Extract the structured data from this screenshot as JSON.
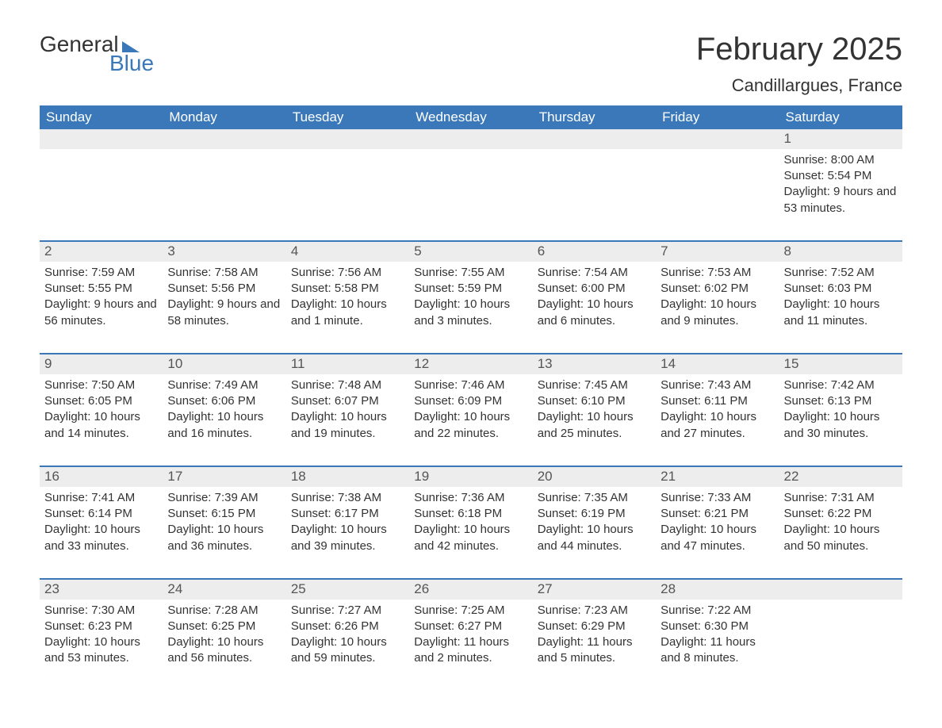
{
  "logo": {
    "word1": "General",
    "word2": "Blue"
  },
  "title": "February 2025",
  "location": "Candillargues, France",
  "colors": {
    "header_bg": "#3a78b9",
    "header_text": "#ffffff",
    "row_divider": "#3a78b9",
    "daynum_bg": "#ededed",
    "text": "#333333",
    "logo_accent": "#3a78b9"
  },
  "weekdays": [
    "Sunday",
    "Monday",
    "Tuesday",
    "Wednesday",
    "Thursday",
    "Friday",
    "Saturday"
  ],
  "weeks": [
    [
      null,
      null,
      null,
      null,
      null,
      null,
      {
        "n": "1",
        "sunrise": "Sunrise: 8:00 AM",
        "sunset": "Sunset: 5:54 PM",
        "daylight": "Daylight: 9 hours and 53 minutes."
      }
    ],
    [
      {
        "n": "2",
        "sunrise": "Sunrise: 7:59 AM",
        "sunset": "Sunset: 5:55 PM",
        "daylight": "Daylight: 9 hours and 56 minutes."
      },
      {
        "n": "3",
        "sunrise": "Sunrise: 7:58 AM",
        "sunset": "Sunset: 5:56 PM",
        "daylight": "Daylight: 9 hours and 58 minutes."
      },
      {
        "n": "4",
        "sunrise": "Sunrise: 7:56 AM",
        "sunset": "Sunset: 5:58 PM",
        "daylight": "Daylight: 10 hours and 1 minute."
      },
      {
        "n": "5",
        "sunrise": "Sunrise: 7:55 AM",
        "sunset": "Sunset: 5:59 PM",
        "daylight": "Daylight: 10 hours and 3 minutes."
      },
      {
        "n": "6",
        "sunrise": "Sunrise: 7:54 AM",
        "sunset": "Sunset: 6:00 PM",
        "daylight": "Daylight: 10 hours and 6 minutes."
      },
      {
        "n": "7",
        "sunrise": "Sunrise: 7:53 AM",
        "sunset": "Sunset: 6:02 PM",
        "daylight": "Daylight: 10 hours and 9 minutes."
      },
      {
        "n": "8",
        "sunrise": "Sunrise: 7:52 AM",
        "sunset": "Sunset: 6:03 PM",
        "daylight": "Daylight: 10 hours and 11 minutes."
      }
    ],
    [
      {
        "n": "9",
        "sunrise": "Sunrise: 7:50 AM",
        "sunset": "Sunset: 6:05 PM",
        "daylight": "Daylight: 10 hours and 14 minutes."
      },
      {
        "n": "10",
        "sunrise": "Sunrise: 7:49 AM",
        "sunset": "Sunset: 6:06 PM",
        "daylight": "Daylight: 10 hours and 16 minutes."
      },
      {
        "n": "11",
        "sunrise": "Sunrise: 7:48 AM",
        "sunset": "Sunset: 6:07 PM",
        "daylight": "Daylight: 10 hours and 19 minutes."
      },
      {
        "n": "12",
        "sunrise": "Sunrise: 7:46 AM",
        "sunset": "Sunset: 6:09 PM",
        "daylight": "Daylight: 10 hours and 22 minutes."
      },
      {
        "n": "13",
        "sunrise": "Sunrise: 7:45 AM",
        "sunset": "Sunset: 6:10 PM",
        "daylight": "Daylight: 10 hours and 25 minutes."
      },
      {
        "n": "14",
        "sunrise": "Sunrise: 7:43 AM",
        "sunset": "Sunset: 6:11 PM",
        "daylight": "Daylight: 10 hours and 27 minutes."
      },
      {
        "n": "15",
        "sunrise": "Sunrise: 7:42 AM",
        "sunset": "Sunset: 6:13 PM",
        "daylight": "Daylight: 10 hours and 30 minutes."
      }
    ],
    [
      {
        "n": "16",
        "sunrise": "Sunrise: 7:41 AM",
        "sunset": "Sunset: 6:14 PM",
        "daylight": "Daylight: 10 hours and 33 minutes."
      },
      {
        "n": "17",
        "sunrise": "Sunrise: 7:39 AM",
        "sunset": "Sunset: 6:15 PM",
        "daylight": "Daylight: 10 hours and 36 minutes."
      },
      {
        "n": "18",
        "sunrise": "Sunrise: 7:38 AM",
        "sunset": "Sunset: 6:17 PM",
        "daylight": "Daylight: 10 hours and 39 minutes."
      },
      {
        "n": "19",
        "sunrise": "Sunrise: 7:36 AM",
        "sunset": "Sunset: 6:18 PM",
        "daylight": "Daylight: 10 hours and 42 minutes."
      },
      {
        "n": "20",
        "sunrise": "Sunrise: 7:35 AM",
        "sunset": "Sunset: 6:19 PM",
        "daylight": "Daylight: 10 hours and 44 minutes."
      },
      {
        "n": "21",
        "sunrise": "Sunrise: 7:33 AM",
        "sunset": "Sunset: 6:21 PM",
        "daylight": "Daylight: 10 hours and 47 minutes."
      },
      {
        "n": "22",
        "sunrise": "Sunrise: 7:31 AM",
        "sunset": "Sunset: 6:22 PM",
        "daylight": "Daylight: 10 hours and 50 minutes."
      }
    ],
    [
      {
        "n": "23",
        "sunrise": "Sunrise: 7:30 AM",
        "sunset": "Sunset: 6:23 PM",
        "daylight": "Daylight: 10 hours and 53 minutes."
      },
      {
        "n": "24",
        "sunrise": "Sunrise: 7:28 AM",
        "sunset": "Sunset: 6:25 PM",
        "daylight": "Daylight: 10 hours and 56 minutes."
      },
      {
        "n": "25",
        "sunrise": "Sunrise: 7:27 AM",
        "sunset": "Sunset: 6:26 PM",
        "daylight": "Daylight: 10 hours and 59 minutes."
      },
      {
        "n": "26",
        "sunrise": "Sunrise: 7:25 AM",
        "sunset": "Sunset: 6:27 PM",
        "daylight": "Daylight: 11 hours and 2 minutes."
      },
      {
        "n": "27",
        "sunrise": "Sunrise: 7:23 AM",
        "sunset": "Sunset: 6:29 PM",
        "daylight": "Daylight: 11 hours and 5 minutes."
      },
      {
        "n": "28",
        "sunrise": "Sunrise: 7:22 AM",
        "sunset": "Sunset: 6:30 PM",
        "daylight": "Daylight: 11 hours and 8 minutes."
      },
      null
    ]
  ]
}
